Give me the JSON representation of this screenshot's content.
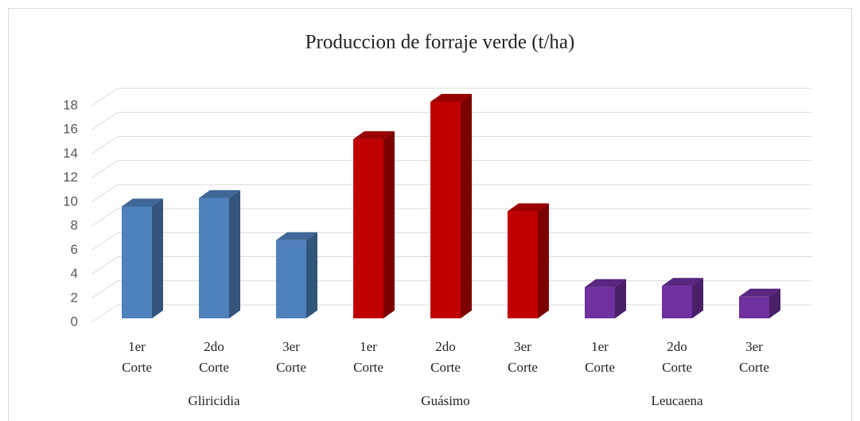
{
  "chart_data": {
    "type": "bar",
    "title": "Produccion de forraje verde (t/ha)",
    "categories": [
      "1er Corte",
      "2do Corte",
      "3er Corte"
    ],
    "series": [
      {
        "name": "Gliricidia",
        "color": "#4f81bd",
        "values": [
          9.3,
          10,
          6.5
        ]
      },
      {
        "name": "Guásimo",
        "color": "#c00000",
        "values": [
          14.9,
          18,
          8.9
        ]
      },
      {
        "name": "Leucaena",
        "color": "#7030a0",
        "values": [
          2.6,
          2.7,
          1.8
        ]
      }
    ],
    "ylim": [
      0,
      18
    ],
    "yticks": [
      0,
      2,
      4,
      6,
      8,
      10,
      12,
      14,
      16,
      18
    ],
    "grid": true
  }
}
